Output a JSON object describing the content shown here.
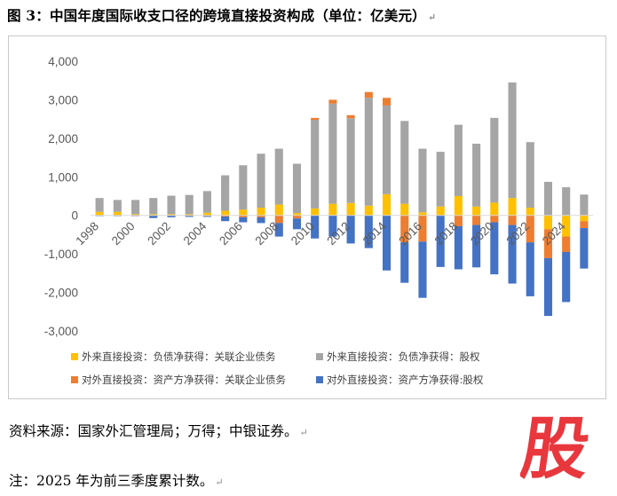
{
  "figure": {
    "title": "图 3：中国年度国际收支口径的跨境直接投资构成（单位：亿美元）",
    "source": "资料来源：国家外汇管理局；万得；中银证券。",
    "note": "注：2025 年为前三季度累计数。",
    "watermark_text": "股"
  },
  "chart_data": {
    "type": "bar",
    "stacked": true,
    "grid": false,
    "ylim": [
      -3000,
      4000
    ],
    "yticks": [
      4000,
      3000,
      2000,
      1000,
      0,
      -1000,
      -2000,
      -3000
    ],
    "ytick_labels": [
      "4,000",
      "3,000",
      "2,000",
      "1,000",
      "0",
      "-1,000",
      "-2,000",
      "-3,000"
    ],
    "categories": [
      "1998",
      "1999",
      "2000",
      "2001",
      "2002",
      "2003",
      "2004",
      "2005",
      "2006",
      "2007",
      "2008",
      "2009",
      "2010",
      "2011",
      "2012",
      "2013",
      "2014",
      "2015",
      "2016",
      "2017",
      "2018",
      "2019",
      "2020",
      "2021",
      "2022",
      "2023",
      "2024",
      "2025"
    ],
    "xtick_labels": [
      "1998",
      "2000",
      "2002",
      "2004",
      "2006",
      "2008",
      "2010",
      "2012",
      "2014",
      "2016",
      "2018",
      "2020",
      "2022",
      "2024"
    ],
    "legend_position": "bottom",
    "series": [
      {
        "name": "外来直接投资：负债净获得：关联企业债务",
        "color": "#ffc000",
        "values": [
          90,
          90,
          30,
          30,
          30,
          30,
          70,
          120,
          150,
          200,
          280,
          60,
          180,
          300,
          320,
          250,
          550,
          300,
          80,
          230,
          500,
          230,
          330,
          450,
          200,
          -360,
          -550,
          -150
        ]
      },
      {
        "name": "外来直接投资：负债净获得：股权",
        "color": "#a5a5a5",
        "values": [
          360,
          310,
          370,
          420,
          480,
          500,
          560,
          920,
          1150,
          1400,
          1450,
          1280,
          2300,
          2600,
          2200,
          2800,
          2300,
          2150,
          1650,
          1420,
          1850,
          1630,
          2200,
          3000,
          1700,
          870,
          730,
          540
        ]
      },
      {
        "name": "对外直接投资：资产方净获得：关联企业债务",
        "color": "#ed7d31",
        "values": [
          0,
          0,
          0,
          0,
          -10,
          -10,
          -20,
          -30,
          -50,
          -50,
          -200,
          -80,
          50,
          100,
          80,
          150,
          200,
          -700,
          -680,
          0,
          -280,
          -250,
          -180,
          -250,
          -700,
          -750,
          -400,
          -180
        ]
      },
      {
        "name": "对外直接投资：资产方净获得:股权",
        "color": "#4472c4",
        "values": [
          -20,
          -20,
          -20,
          -70,
          -40,
          -30,
          -20,
          -120,
          -130,
          -150,
          -350,
          -280,
          -600,
          -550,
          -730,
          -850,
          -1430,
          -1050,
          -1460,
          -1340,
          -1120,
          -1100,
          -1350,
          -1520,
          -1400,
          -1500,
          -1300,
          -1050
        ]
      }
    ]
  }
}
